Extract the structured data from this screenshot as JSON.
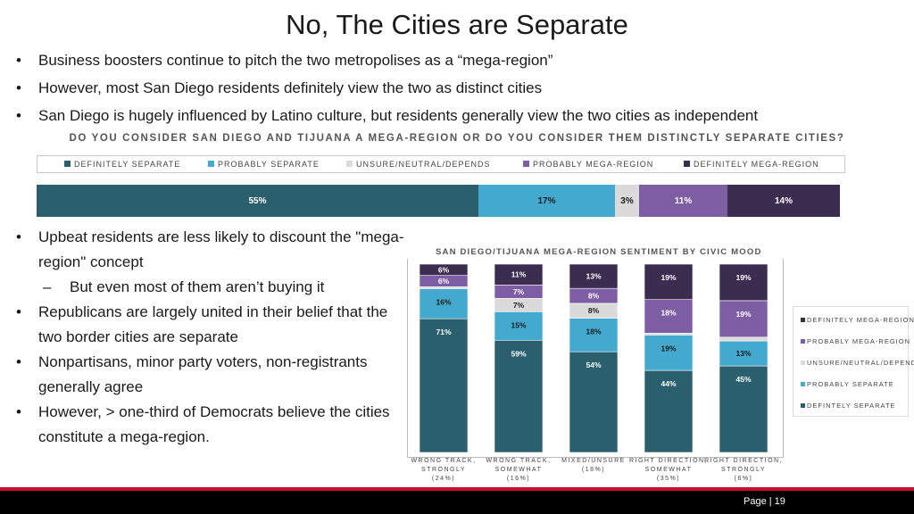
{
  "title": "No, The Cities are Separate",
  "top_bullets": [
    "Business boosters continue to pitch the two metropolises as a “mega-region”",
    "However, most San Diego residents definitely view the two as distinct cities",
    "San Diego is hugely influenced by Latino culture, but residents generally view the two cities as independent"
  ],
  "left_bullets": {
    "b1": "Upbeat residents are less likely to discount the \"mega-region\" concept",
    "b1_sub": "But even most of them aren’t buying it",
    "b2": "Republicans are largely united in their belief that the two border cities are separate",
    "b3": "Nonpartisans, minor party voters, non-registrants generally agree",
    "b4": "However, > one-third of Democrats believe the cities constitute a mega-region."
  },
  "footer": {
    "page": "Page | 19"
  },
  "colors": {
    "definitely_separate": "#2a5f6e",
    "probably_separate": "#44a9cf",
    "unsure": "#dadada",
    "probably_mega": "#7d5ea5",
    "definitely_mega": "#3b2d4f"
  },
  "chart_data": [
    {
      "type": "bar",
      "orientation": "horizontal-stacked",
      "title": "DO YOU CONSIDER SAN DIEGO AND TIJUANA A MEGA-REGION OR DO YOU CONSIDER THEM DISTINCTLY SEPARATE CITIES?",
      "legend": [
        "DEFINITELY SEPARATE",
        "PROBABLY SEPARATE",
        "UNSURE/NEUTRAL/DEPENDS",
        "PROBABLY MEGA-REGION",
        "DEFINITELY MEGA-REGION"
      ],
      "series": [
        {
          "name": "DEFINITELY SEPARATE",
          "value": 55,
          "label": "55%"
        },
        {
          "name": "PROBABLY SEPARATE",
          "value": 17,
          "label": "17%"
        },
        {
          "name": "UNSURE/NEUTRAL/DEPENDS",
          "value": 3,
          "label": "3%"
        },
        {
          "name": "PROBABLY MEGA-REGION",
          "value": 11,
          "label": "11%"
        },
        {
          "name": "DEFINITELY MEGA-REGION",
          "value": 14,
          "label": "14%"
        }
      ]
    },
    {
      "type": "bar",
      "orientation": "vertical-stacked",
      "title": "SAN DIEGO/TIJUANA MEGA-REGION SENTIMENT BY CIVIC MOOD",
      "categories": [
        [
          "WRONG TRACK,",
          "STRONGLY",
          "(24%)"
        ],
        [
          "WRONG TRACK,",
          "SOMEWHAT",
          "(16%)"
        ],
        [
          "MIXED/UNSURE",
          "(18%)"
        ],
        [
          "RIGHT DIRECTION,",
          "SOMEWHAT",
          "(35%)"
        ],
        [
          "RIGHT DIRECTION,",
          "STRONGLY",
          "(6%)"
        ]
      ],
      "legend": [
        "DEFINITELY MEGA-REGION",
        "PROBABLY MEGA-REGION",
        "UNSURE/NEUTRAL/DEPENDS",
        "PROBABLY SEPARATE",
        "DEFINTELY SEPARATE"
      ],
      "series": [
        {
          "name": "DEFINTELY SEPARATE",
          "key": "definitely_separate",
          "values": [
            71,
            59,
            54,
            44,
            45
          ],
          "labels": [
            "71%",
            "59%",
            "54%",
            "44%",
            "45%"
          ]
        },
        {
          "name": "PROBABLY SEPARATE",
          "key": "probably_separate",
          "values": [
            16,
            15,
            18,
            19,
            13
          ],
          "labels": [
            "16%",
            "15%",
            "18%",
            "19%",
            "13%"
          ]
        },
        {
          "name": "UNSURE/NEUTRAL/DEPENDS",
          "key": "unsure",
          "values": [
            1,
            7,
            8,
            1,
            2
          ],
          "labels": [
            "",
            "7%",
            "8%",
            "",
            ""
          ]
        },
        {
          "name": "PROBABLY MEGA-REGION",
          "key": "probably_mega",
          "values": [
            6,
            7,
            8,
            18,
            19
          ],
          "labels": [
            "6%",
            "7%",
            "8%",
            "18%",
            "19%"
          ]
        },
        {
          "name": "DEFINITELY MEGA-REGION",
          "key": "definitely_mega",
          "values": [
            6,
            11,
            13,
            19,
            19
          ],
          "labels": [
            "6%",
            "11%",
            "13%",
            "19%",
            "19%"
          ]
        }
      ],
      "ylim": [
        0,
        100
      ]
    }
  ]
}
